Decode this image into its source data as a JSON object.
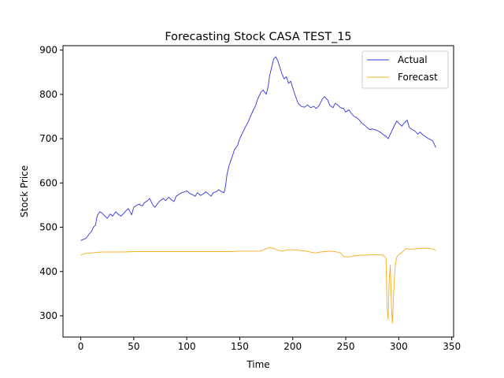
{
  "chart_data": {
    "type": "line",
    "title": "Forecasting Stock CASA TEST_15",
    "xlabel": "Time",
    "ylabel": "Stock Price",
    "xlim": [
      -16.75,
      351.75
    ],
    "ylim": [
      252,
      910
    ],
    "xticks": [
      0,
      50,
      100,
      150,
      200,
      250,
      300,
      350
    ],
    "yticks": [
      300,
      400,
      500,
      600,
      700,
      800,
      900
    ],
    "grid": false,
    "legend": "top-right",
    "series": [
      {
        "name": "Actual",
        "color": "#3333dd",
        "points": [
          [
            0,
            470
          ],
          [
            5,
            475
          ],
          [
            8,
            485
          ],
          [
            10,
            490
          ],
          [
            12,
            500
          ],
          [
            14,
            505
          ],
          [
            15,
            520
          ],
          [
            16,
            528
          ],
          [
            18,
            535
          ],
          [
            20,
            532
          ],
          [
            22,
            527
          ],
          [
            25,
            520
          ],
          [
            28,
            530
          ],
          [
            30,
            525
          ],
          [
            33,
            535
          ],
          [
            35,
            530
          ],
          [
            38,
            525
          ],
          [
            40,
            530
          ],
          [
            43,
            538
          ],
          [
            45,
            542
          ],
          [
            48,
            528
          ],
          [
            50,
            545
          ],
          [
            53,
            550
          ],
          [
            55,
            552
          ],
          [
            58,
            548
          ],
          [
            60,
            555
          ],
          [
            63,
            560
          ],
          [
            65,
            565
          ],
          [
            68,
            550
          ],
          [
            70,
            545
          ],
          [
            73,
            555
          ],
          [
            75,
            560
          ],
          [
            78,
            565
          ],
          [
            80,
            560
          ],
          [
            83,
            568
          ],
          [
            85,
            563
          ],
          [
            88,
            558
          ],
          [
            90,
            570
          ],
          [
            93,
            575
          ],
          [
            95,
            578
          ],
          [
            98,
            580
          ],
          [
            100,
            582
          ],
          [
            103,
            576
          ],
          [
            105,
            574
          ],
          [
            108,
            570
          ],
          [
            110,
            578
          ],
          [
            113,
            572
          ],
          [
            115,
            574
          ],
          [
            118,
            580
          ],
          [
            120,
            576
          ],
          [
            123,
            570
          ],
          [
            125,
            578
          ],
          [
            128,
            580
          ],
          [
            130,
            585
          ],
          [
            133,
            580
          ],
          [
            135,
            578
          ],
          [
            136,
            585
          ],
          [
            137,
            600
          ],
          [
            138,
            620
          ],
          [
            140,
            640
          ],
          [
            143,
            660
          ],
          [
            145,
            675
          ],
          [
            148,
            685
          ],
          [
            150,
            700
          ],
          [
            153,
            715
          ],
          [
            155,
            725
          ],
          [
            158,
            738
          ],
          [
            160,
            750
          ],
          [
            163,
            765
          ],
          [
            165,
            775
          ],
          [
            167,
            790
          ],
          [
            170,
            805
          ],
          [
            172,
            810
          ],
          [
            175,
            800
          ],
          [
            177,
            820
          ],
          [
            178,
            840
          ],
          [
            180,
            860
          ],
          [
            182,
            880
          ],
          [
            184,
            885
          ],
          [
            186,
            875
          ],
          [
            188,
            860
          ],
          [
            190,
            845
          ],
          [
            192,
            835
          ],
          [
            194,
            840
          ],
          [
            196,
            825
          ],
          [
            198,
            830
          ],
          [
            200,
            815
          ],
          [
            202,
            800
          ],
          [
            205,
            780
          ],
          [
            208,
            773
          ],
          [
            211,
            771
          ],
          [
            214,
            776
          ],
          [
            217,
            770
          ],
          [
            220,
            773
          ],
          [
            222,
            768
          ],
          [
            225,
            775
          ],
          [
            228,
            790
          ],
          [
            230,
            795
          ],
          [
            233,
            787
          ],
          [
            235,
            775
          ],
          [
            238,
            770
          ],
          [
            240,
            780
          ],
          [
            243,
            775
          ],
          [
            245,
            770
          ],
          [
            248,
            768
          ],
          [
            250,
            760
          ],
          [
            253,
            765
          ],
          [
            255,
            758
          ],
          [
            258,
            750
          ],
          [
            260,
            748
          ],
          [
            263,
            742
          ],
          [
            265,
            735
          ],
          [
            268,
            730
          ],
          [
            270,
            725
          ],
          [
            273,
            720
          ],
          [
            275,
            722
          ],
          [
            278,
            720
          ],
          [
            280,
            718
          ],
          [
            283,
            714
          ],
          [
            285,
            710
          ],
          [
            288,
            705
          ],
          [
            290,
            700
          ],
          [
            293,
            715
          ],
          [
            295,
            725
          ],
          [
            298,
            740
          ],
          [
            300,
            735
          ],
          [
            303,
            728
          ],
          [
            305,
            735
          ],
          [
            308,
            742
          ],
          [
            310,
            725
          ],
          [
            313,
            720
          ],
          [
            315,
            718
          ],
          [
            318,
            710
          ],
          [
            320,
            715
          ],
          [
            323,
            708
          ],
          [
            325,
            705
          ],
          [
            328,
            700
          ],
          [
            330,
            698
          ],
          [
            332,
            695
          ],
          [
            334,
            685
          ],
          [
            335,
            680
          ]
        ]
      },
      {
        "name": "Forecast",
        "color": "#f5ad1e",
        "points": [
          [
            0,
            437
          ],
          [
            3,
            440
          ],
          [
            6,
            441
          ],
          [
            10,
            442
          ],
          [
            15,
            443
          ],
          [
            20,
            444
          ],
          [
            25,
            444
          ],
          [
            30,
            444
          ],
          [
            35,
            444
          ],
          [
            40,
            444
          ],
          [
            50,
            445
          ],
          [
            60,
            445
          ],
          [
            70,
            445
          ],
          [
            80,
            445
          ],
          [
            90,
            445
          ],
          [
            100,
            445
          ],
          [
            110,
            445
          ],
          [
            120,
            445
          ],
          [
            130,
            445
          ],
          [
            140,
            445
          ],
          [
            150,
            446
          ],
          [
            160,
            446
          ],
          [
            170,
            446
          ],
          [
            175,
            452
          ],
          [
            178,
            454
          ],
          [
            182,
            452
          ],
          [
            186,
            448
          ],
          [
            190,
            446
          ],
          [
            195,
            449
          ],
          [
            200,
            449
          ],
          [
            205,
            448
          ],
          [
            210,
            447
          ],
          [
            215,
            445
          ],
          [
            218,
            443
          ],
          [
            222,
            442
          ],
          [
            226,
            444
          ],
          [
            230,
            445
          ],
          [
            235,
            446
          ],
          [
            240,
            445
          ],
          [
            245,
            442
          ],
          [
            248,
            434
          ],
          [
            252,
            433
          ],
          [
            256,
            434
          ],
          [
            260,
            436
          ],
          [
            265,
            437
          ],
          [
            270,
            437
          ],
          [
            275,
            438
          ],
          [
            280,
            438
          ],
          [
            285,
            437
          ],
          [
            287,
            433
          ],
          [
            288,
            430
          ],
          [
            289,
            320
          ],
          [
            290,
            292
          ],
          [
            291,
            380
          ],
          [
            292,
            415
          ],
          [
            293,
            330
          ],
          [
            294,
            283
          ],
          [
            295,
            340
          ],
          [
            296,
            390
          ],
          [
            297,
            420
          ],
          [
            298,
            432
          ],
          [
            300,
            438
          ],
          [
            303,
            443
          ],
          [
            305,
            448
          ],
          [
            307,
            452
          ],
          [
            310,
            450
          ],
          [
            313,
            451
          ],
          [
            316,
            451
          ],
          [
            320,
            452
          ],
          [
            325,
            453
          ],
          [
            330,
            452
          ],
          [
            333,
            450
          ],
          [
            335,
            447
          ]
        ]
      }
    ]
  }
}
